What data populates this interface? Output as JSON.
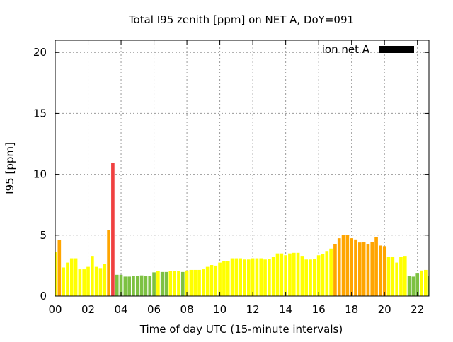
{
  "chart_data": {
    "type": "bar",
    "title": "Total I95 zenith [ppm] on NET A, DoY=091",
    "xlabel": "Time of day UTC (15-minute intervals)",
    "ylabel": "I95 [ppm]",
    "xlim": [
      0,
      22.7
    ],
    "ylim": [
      0,
      21
    ],
    "grid": true,
    "legend": {
      "label": "ion net A",
      "placement": "top-right",
      "color": "#000000"
    },
    "x_ticks": [
      0,
      2,
      4,
      6,
      8,
      10,
      12,
      14,
      16,
      18,
      20,
      22
    ],
    "x_tick_labels": [
      "00",
      "02",
      "04",
      "06",
      "08",
      "10",
      "12",
      "14",
      "16",
      "18",
      "20",
      "22"
    ],
    "y_ticks": [
      0,
      5,
      10,
      15,
      20
    ],
    "y_tick_labels": [
      "0",
      "5",
      "10",
      "15",
      "20"
    ],
    "interval_hours": 0.25,
    "values": [
      3.6,
      4.6,
      2.35,
      2.75,
      3.1,
      3.1,
      2.2,
      2.2,
      2.4,
      3.3,
      2.4,
      2.3,
      2.65,
      5.45,
      10.95,
      1.75,
      1.75,
      1.6,
      1.6,
      1.65,
      1.65,
      1.7,
      1.65,
      1.65,
      1.95,
      2.05,
      1.98,
      1.98,
      2.05,
      2.05,
      2.05,
      1.98,
      2.1,
      2.15,
      2.15,
      2.15,
      2.2,
      2.4,
      2.55,
      2.5,
      2.75,
      2.85,
      2.9,
      3.1,
      3.1,
      3.1,
      3.0,
      3.0,
      3.1,
      3.1,
      3.1,
      3.0,
      3.05,
      3.2,
      3.5,
      3.5,
      3.35,
      3.5,
      3.55,
      3.55,
      3.3,
      3.0,
      3.0,
      3.05,
      3.35,
      3.45,
      3.7,
      3.9,
      4.25,
      4.75,
      5.0,
      5.0,
      4.75,
      4.65,
      4.4,
      4.45,
      4.25,
      4.45,
      4.85,
      4.15,
      4.1,
      3.2,
      3.25,
      2.75,
      3.2,
      3.3,
      1.65,
      1.6,
      1.85,
      2.1,
      2.15,
      1.65
    ],
    "color_scale": [
      {
        "below": 2,
        "color": "#7dc142"
      },
      {
        "below": 4,
        "color": "#ffff00"
      },
      {
        "below": 10,
        "color": "#ffa500"
      },
      {
        "below": 1000,
        "color": "#f04040"
      }
    ]
  }
}
